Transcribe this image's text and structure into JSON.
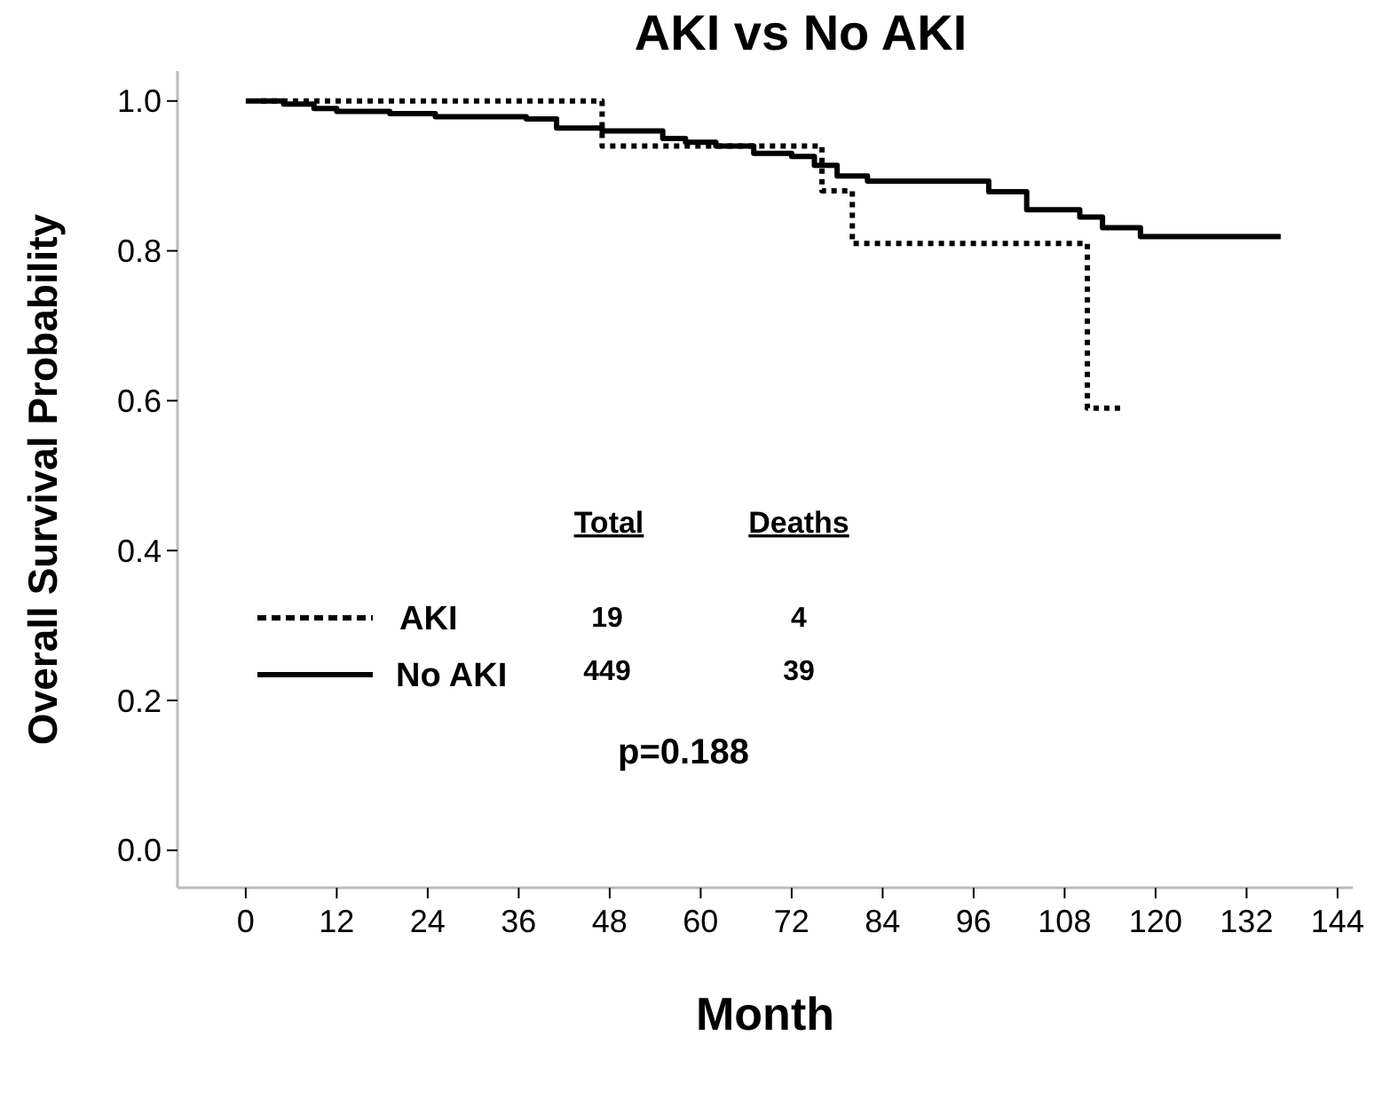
{
  "chart_data": {
    "type": "step",
    "title": "AKI vs No AKI",
    "xlabel": "Month",
    "ylabel": "Overall Survival Probability",
    "xlim": [
      -9,
      146
    ],
    "xticks": [
      0,
      12,
      24,
      36,
      48,
      60,
      72,
      84,
      96,
      108,
      120,
      132,
      144
    ],
    "ylim": [
      -0.05,
      1.04
    ],
    "yticks": [
      {
        "value": 0,
        "label": "0.0"
      },
      {
        "value": 0.2,
        "label": "0.2"
      },
      {
        "value": 0.4,
        "label": "0.4"
      },
      {
        "value": 0.6,
        "label": "0.6"
      },
      {
        "value": 0.8,
        "label": "0.8"
      },
      {
        "value": 1,
        "label": "1.0"
      }
    ],
    "series": [
      {
        "name": "AKI",
        "color": "#000000",
        "line_style": "dotted",
        "x": [
          2,
          47,
          47,
          76,
          76,
          80,
          80,
          111,
          111,
          115.5
        ],
        "values": [
          1,
          1,
          0.94,
          0.94,
          0.88,
          0.88,
          0.81,
          0.81,
          0.59,
          0.59
        ]
      },
      {
        "name": "No AKI",
        "color": "#000000",
        "line_style": "solid",
        "x": [
          0,
          5,
          9,
          12,
          19,
          25,
          37,
          41,
          47,
          55,
          58,
          62,
          67,
          72,
          75,
          78,
          82,
          95,
          98,
          103,
          110,
          113,
          118,
          136.5
        ],
        "values": [
          1,
          0.996,
          0.99,
          0.986,
          0.983,
          0.979,
          0.976,
          0.964,
          0.96,
          0.95,
          0.945,
          0.94,
          0.93,
          0.926,
          0.914,
          0.9,
          0.893,
          0.893,
          0.879,
          0.855,
          0.845,
          0.831,
          0.819,
          0.819
        ]
      }
    ],
    "legend": "bottom left",
    "marker": "none",
    "grid": false,
    "annotations": [
      "Total",
      "Deaths",
      "19",
      "4",
      "449",
      "39",
      "p=0.188"
    ]
  }
}
